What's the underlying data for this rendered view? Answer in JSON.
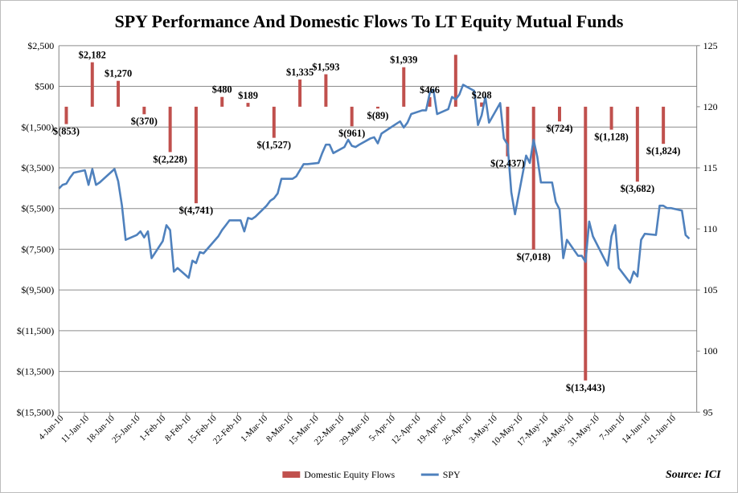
{
  "chart_data": {
    "type": "bar+line",
    "title": "SPY Performance And Domestic Flows To LT Equity Mutual Funds",
    "source": "Source: ICI",
    "legend": {
      "placement": "bottom"
    },
    "grid": true,
    "colors": {
      "bars": "#c0504d",
      "line": "#4f81bd"
    },
    "y_left": {
      "range": [
        -15500,
        2500
      ],
      "ticks": [
        2500,
        500,
        -1500,
        -3500,
        -5500,
        -7500,
        -9500,
        -11500,
        -13500,
        -15500
      ],
      "tick_labels": [
        "$2,500",
        "$500",
        "$(1,500)",
        "$(3,500)",
        "$(5,500)",
        "$(7,500)",
        "$(9,500)",
        "$(11,500)",
        "$(13,500)",
        "$(15,500)"
      ]
    },
    "y_right": {
      "range": [
        95,
        125
      ],
      "ticks": [
        125,
        120,
        115,
        110,
        105,
        100,
        95
      ],
      "tick_labels": [
        "125",
        "120",
        "115",
        "110",
        "105",
        "100",
        "95"
      ]
    },
    "x_axis": {
      "tick_labels": [
        "4-Jan-10",
        "11-Jan-10",
        "18-Jan-10",
        "25-Jan-10",
        "1-Feb-10",
        "8-Feb-10",
        "15-Feb-10",
        "22-Feb-10",
        "1-Mar-10",
        "8-Mar-10",
        "15-Mar-10",
        "22-Mar-10",
        "29-Mar-10",
        "5-Apr-10",
        "12-Apr-10",
        "19-Apr-10",
        "26-Apr-10",
        "3-May-10",
        "10-May-10",
        "17-May-10",
        "24-May-10",
        "31-May-10",
        "7-Jun-10",
        "14-Jun-10",
        "21-Jun-10"
      ],
      "start_date": "2010-01-04",
      "end_date": "2010-06-25"
    },
    "series": [
      {
        "name": "Domestic Equity Flows",
        "kind": "bar",
        "axis": "left",
        "points": [
          {
            "date": "2010-01-06",
            "value": -853,
            "label": "$(853)"
          },
          {
            "date": "2010-01-13",
            "value": 2182,
            "label": "$2,182"
          },
          {
            "date": "2010-01-20",
            "value": 1270,
            "label": "$1,270"
          },
          {
            "date": "2010-01-27",
            "value": -370,
            "label": "$(370)"
          },
          {
            "date": "2010-02-03",
            "value": -2228,
            "label": "$(2,228)"
          },
          {
            "date": "2010-02-10",
            "value": -4741,
            "label": "$(4,741)"
          },
          {
            "date": "2010-02-17",
            "value": 480,
            "label": "$480"
          },
          {
            "date": "2010-02-24",
            "value": 189,
            "label": "$189"
          },
          {
            "date": "2010-03-03",
            "value": -1527,
            "label": "$(1,527)"
          },
          {
            "date": "2010-03-10",
            "value": 1335,
            "label": "$1,335"
          },
          {
            "date": "2010-03-17",
            "value": 1593,
            "label": "$1,593"
          },
          {
            "date": "2010-03-24",
            "value": -961,
            "label": "$(961)"
          },
          {
            "date": "2010-03-31",
            "value": -89,
            "label": "$(89)"
          },
          {
            "date": "2010-04-07",
            "value": 1939,
            "label": "$1,939"
          },
          {
            "date": "2010-04-14",
            "value": 466,
            "label": "$466"
          },
          {
            "date": "2010-04-21",
            "value": 2550,
            "label": ""
          },
          {
            "date": "2010-04-28",
            "value": 208,
            "label": "$208"
          },
          {
            "date": "2010-05-05",
            "value": -2437,
            "label": "$(2,437)"
          },
          {
            "date": "2010-05-12",
            "value": -7018,
            "label": "$(7,018)"
          },
          {
            "date": "2010-05-19",
            "value": -724,
            "label": "$(724)"
          },
          {
            "date": "2010-05-26",
            "value": -13443,
            "label": "$(13,443)"
          },
          {
            "date": "2010-06-02",
            "value": -1128,
            "label": "$(1,128)"
          },
          {
            "date": "2010-06-09",
            "value": -3682,
            "label": "$(3,682)"
          },
          {
            "date": "2010-06-16",
            "value": -1824,
            "label": "$(1,824)"
          }
        ]
      },
      {
        "name": "SPY",
        "kind": "line",
        "axis": "right",
        "points": [
          [
            "2010-01-04",
            113.3
          ],
          [
            "2010-01-05",
            113.6
          ],
          [
            "2010-01-06",
            113.7
          ],
          [
            "2010-01-07",
            114.2
          ],
          [
            "2010-01-08",
            114.6
          ],
          [
            "2010-01-11",
            114.8
          ],
          [
            "2010-01-12",
            113.6
          ],
          [
            "2010-01-13",
            114.9
          ],
          [
            "2010-01-14",
            113.6
          ],
          [
            "2010-01-15",
            113.8
          ],
          [
            "2010-01-19",
            114.9
          ],
          [
            "2010-01-20",
            113.9
          ],
          [
            "2010-01-21",
            111.9
          ],
          [
            "2010-01-22",
            109.1
          ],
          [
            "2010-01-25",
            109.5
          ],
          [
            "2010-01-26",
            109.8
          ],
          [
            "2010-01-27",
            109.3
          ],
          [
            "2010-01-28",
            109.8
          ],
          [
            "2010-01-29",
            107.6
          ],
          [
            "2010-02-01",
            109.0
          ],
          [
            "2010-02-02",
            110.3
          ],
          [
            "2010-02-03",
            109.9
          ],
          [
            "2010-02-04",
            106.5
          ],
          [
            "2010-02-05",
            106.8
          ],
          [
            "2010-02-08",
            106.0
          ],
          [
            "2010-02-09",
            107.4
          ],
          [
            "2010-02-10",
            107.2
          ],
          [
            "2010-02-11",
            108.1
          ],
          [
            "2010-02-12",
            108.0
          ],
          [
            "2010-02-16",
            109.4
          ],
          [
            "2010-02-17",
            109.9
          ],
          [
            "2010-02-18",
            110.3
          ],
          [
            "2010-02-19",
            110.7
          ],
          [
            "2010-02-22",
            110.7
          ],
          [
            "2010-02-23",
            109.8
          ],
          [
            "2010-02-24",
            110.9
          ],
          [
            "2010-02-25",
            110.8
          ],
          [
            "2010-02-26",
            111.0
          ],
          [
            "2010-03-01",
            111.9
          ],
          [
            "2010-03-02",
            112.3
          ],
          [
            "2010-03-03",
            112.5
          ],
          [
            "2010-03-04",
            112.9
          ],
          [
            "2010-03-05",
            114.1
          ],
          [
            "2010-03-08",
            114.1
          ],
          [
            "2010-03-09",
            114.3
          ],
          [
            "2010-03-10",
            114.8
          ],
          [
            "2010-03-11",
            115.3
          ],
          [
            "2010-03-12",
            115.3
          ],
          [
            "2010-03-15",
            115.4
          ],
          [
            "2010-03-16",
            116.2
          ],
          [
            "2010-03-17",
            116.9
          ],
          [
            "2010-03-18",
            116.9
          ],
          [
            "2010-03-19",
            116.2
          ],
          [
            "2010-03-22",
            116.7
          ],
          [
            "2010-03-23",
            117.3
          ],
          [
            "2010-03-24",
            116.8
          ],
          [
            "2010-03-25",
            116.7
          ],
          [
            "2010-03-26",
            116.9
          ],
          [
            "2010-03-29",
            117.4
          ],
          [
            "2010-03-30",
            117.5
          ],
          [
            "2010-03-31",
            117.0
          ],
          [
            "2010-04-01",
            117.8
          ],
          [
            "2010-04-05",
            118.6
          ],
          [
            "2010-04-06",
            118.8
          ],
          [
            "2010-04-07",
            118.3
          ],
          [
            "2010-04-08",
            118.7
          ],
          [
            "2010-04-09",
            119.4
          ],
          [
            "2010-04-12",
            119.7
          ],
          [
            "2010-04-13",
            119.7
          ],
          [
            "2010-04-14",
            121.1
          ],
          [
            "2010-04-15",
            121.4
          ],
          [
            "2010-04-16",
            119.4
          ],
          [
            "2010-04-19",
            119.8
          ],
          [
            "2010-04-20",
            120.8
          ],
          [
            "2010-04-21",
            120.6
          ],
          [
            "2010-04-22",
            121.0
          ],
          [
            "2010-04-23",
            121.8
          ],
          [
            "2010-04-26",
            121.3
          ],
          [
            "2010-04-27",
            118.5
          ],
          [
            "2010-04-28",
            119.3
          ],
          [
            "2010-04-29",
            120.8
          ],
          [
            "2010-04-30",
            118.7
          ],
          [
            "2010-05-03",
            120.3
          ],
          [
            "2010-05-04",
            117.4
          ],
          [
            "2010-05-05",
            116.9
          ],
          [
            "2010-05-06",
            113.0
          ],
          [
            "2010-05-07",
            111.2
          ],
          [
            "2010-05-10",
            116.0
          ],
          [
            "2010-05-11",
            115.4
          ],
          [
            "2010-05-12",
            117.3
          ],
          [
            "2010-05-13",
            115.9
          ],
          [
            "2010-05-14",
            113.8
          ],
          [
            "2010-05-17",
            113.8
          ],
          [
            "2010-05-18",
            112.2
          ],
          [
            "2010-05-19",
            111.6
          ],
          [
            "2010-05-20",
            107.6
          ],
          [
            "2010-05-21",
            109.1
          ],
          [
            "2010-05-24",
            107.8
          ],
          [
            "2010-05-25",
            107.8
          ],
          [
            "2010-05-26",
            107.3
          ],
          [
            "2010-05-27",
            110.6
          ],
          [
            "2010-05-28",
            109.4
          ],
          [
            "2010-06-01",
            107.0
          ],
          [
            "2010-06-02",
            109.4
          ],
          [
            "2010-06-03",
            110.3
          ],
          [
            "2010-06-04",
            106.8
          ],
          [
            "2010-06-07",
            105.6
          ],
          [
            "2010-06-08",
            106.5
          ],
          [
            "2010-06-09",
            106.1
          ],
          [
            "2010-06-10",
            109.1
          ],
          [
            "2010-06-11",
            109.6
          ],
          [
            "2010-06-14",
            109.5
          ],
          [
            "2010-06-15",
            111.9
          ],
          [
            "2010-06-16",
            111.9
          ],
          [
            "2010-06-17",
            111.7
          ],
          [
            "2010-06-18",
            111.7
          ],
          [
            "2010-06-21",
            111.5
          ],
          [
            "2010-06-22",
            109.5
          ],
          [
            "2010-06-23",
            109.2
          ]
        ]
      }
    ]
  }
}
